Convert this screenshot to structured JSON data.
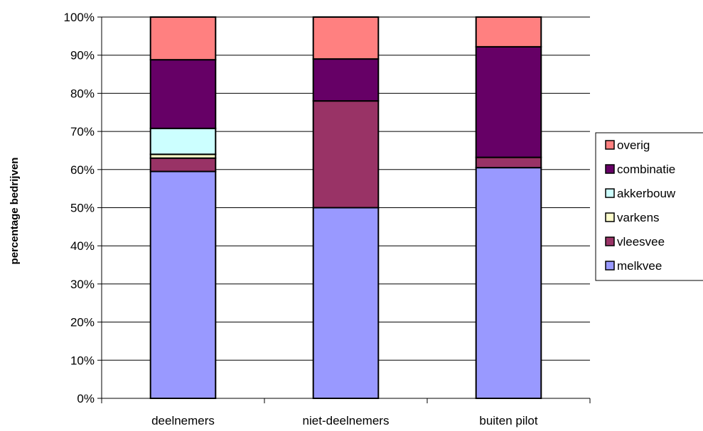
{
  "chart_data": {
    "type": "bar",
    "stacked": true,
    "ylabel": "percentage bedrijven",
    "ylim": [
      0,
      100
    ],
    "yticks": [
      "0%",
      "10%",
      "20%",
      "30%",
      "40%",
      "50%",
      "60%",
      "70%",
      "80%",
      "90%",
      "100%"
    ],
    "grid": true,
    "legend_position": "right",
    "categories": [
      "deelnemers",
      "niet-deelnemers",
      "buiten pilot"
    ],
    "series": [
      {
        "name": "melkvee",
        "color": "#9999ff",
        "values": [
          59.5,
          50.0,
          60.5
        ]
      },
      {
        "name": "vleesvee",
        "color": "#993366",
        "values": [
          3.5,
          28.0,
          2.7
        ]
      },
      {
        "name": "varkens",
        "color": "#ffffcc",
        "values": [
          1.0,
          0.0,
          0.0
        ]
      },
      {
        "name": "akkerbouw",
        "color": "#ccffff",
        "values": [
          6.8,
          0.0,
          0.0
        ]
      },
      {
        "name": "combinatie",
        "color": "#660066",
        "values": [
          18.0,
          11.0,
          29.0
        ]
      },
      {
        "name": "overig",
        "color": "#ff8080",
        "values": [
          11.2,
          11.0,
          7.8
        ]
      }
    ],
    "legend_entries": [
      "overig",
      "combinatie",
      "akkerbouw",
      "varkens",
      "vleesvee",
      "melkvee"
    ]
  }
}
